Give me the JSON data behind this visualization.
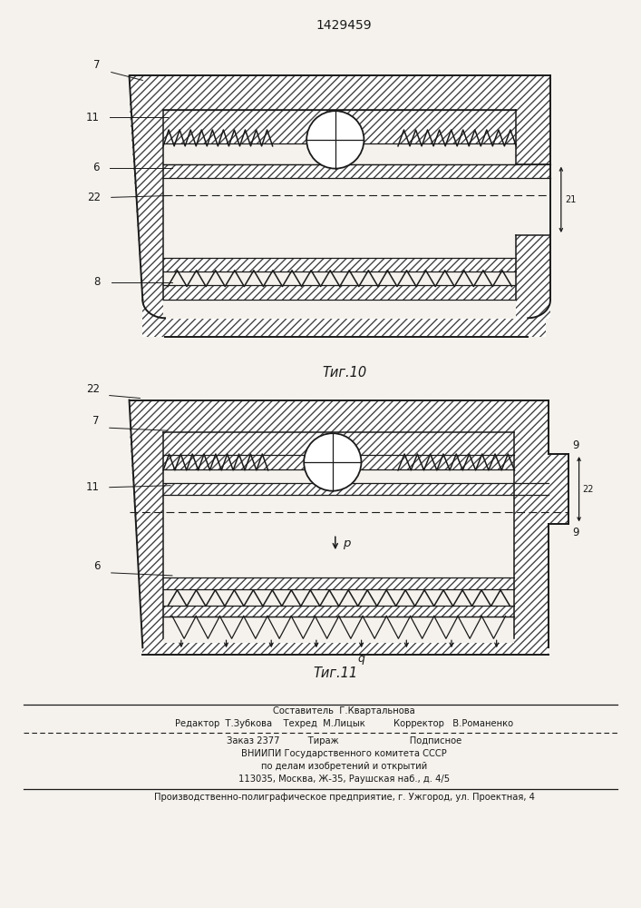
{
  "patent_number": "1429459",
  "fig10_label": "Τиг.10",
  "fig11_label": "Τиг.11",
  "footer_line1": "Составитель  Г.Квартальнова",
  "footer_line2": "Редактор  Т.Зубкова    Техред  М.Лицык          Корректор   В.Романенко",
  "footer_line3": "Заказ 2377          Тираж                         Подписное",
  "footer_line4": "ВНИИПИ Государственного комитета СССР",
  "footer_line5": "по делам изобретений и открытий",
  "footer_line6": "113035, Москва, Ж-35, Раушская наб., д. 4/5",
  "footer_line7": "Производственно-полиграфическое предприятие, г. Ужгород, ул. Проектная, 4",
  "bg_color": "#f5f2ed",
  "line_color": "#1a1a1a"
}
